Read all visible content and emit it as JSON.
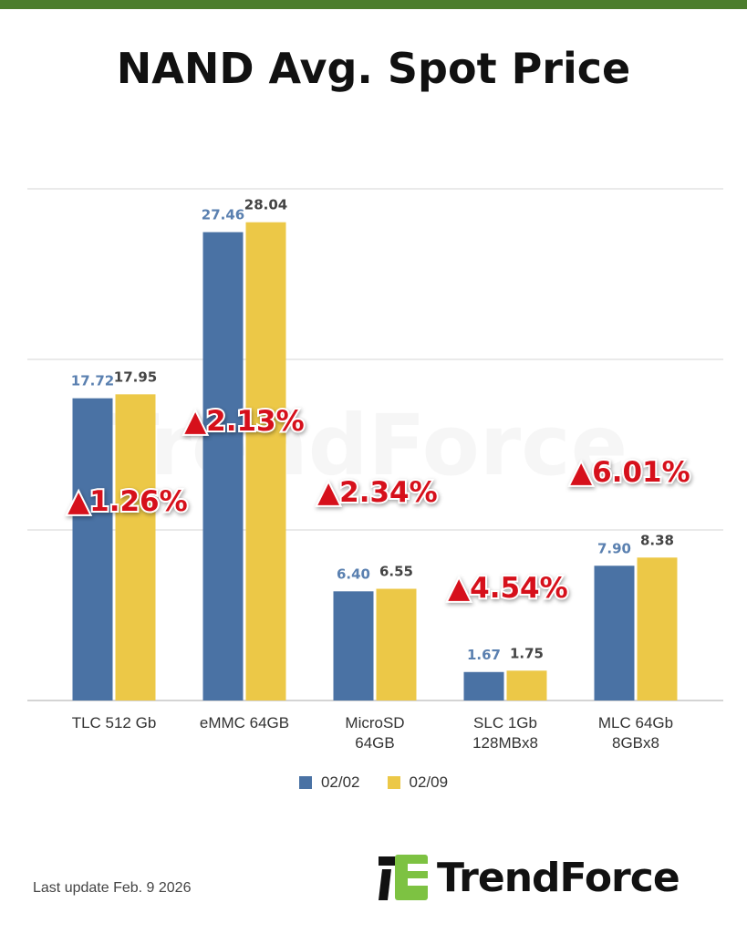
{
  "title": "NAND Avg. Spot Price",
  "footer": {
    "last_update": "Last update Feb. 9  2026",
    "logo_text": "TrendForce",
    "watermark": "TrendForce"
  },
  "colors": {
    "series1": "#4a72a4",
    "series2": "#ecc847",
    "change": "#d6101b",
    "brand_green": "#4b7d2c",
    "logo_green": "#7dc242"
  },
  "chart_data": {
    "type": "bar",
    "title": "NAND Avg. Spot Price",
    "categories": [
      "TLC 512 Gb",
      "eMMC 64GB",
      "MicroSD\n64GB",
      "SLC 1Gb\n128MBx8",
      "MLC 64Gb\n8GBx8"
    ],
    "series": [
      {
        "name": "02/02",
        "values": [
          17.72,
          27.46,
          6.4,
          1.67,
          7.9
        ],
        "labels": [
          "17.72",
          "27.46",
          "6.40",
          "1.67",
          "7.90"
        ]
      },
      {
        "name": "02/09",
        "values": [
          17.95,
          28.04,
          6.55,
          1.75,
          8.38
        ],
        "labels": [
          "17.95",
          "28.04",
          "6.55",
          "1.75",
          "8.38"
        ]
      }
    ],
    "changes": [
      "▲1.26%",
      "▲2.13%",
      "▲2.34%",
      "▲4.54%",
      "▲6.01%"
    ],
    "ylim": [
      0,
      30
    ],
    "gridlines": [
      0,
      10,
      20,
      30
    ],
    "grid": true,
    "y_tick_labels_shown": false,
    "legend": "bottom"
  }
}
